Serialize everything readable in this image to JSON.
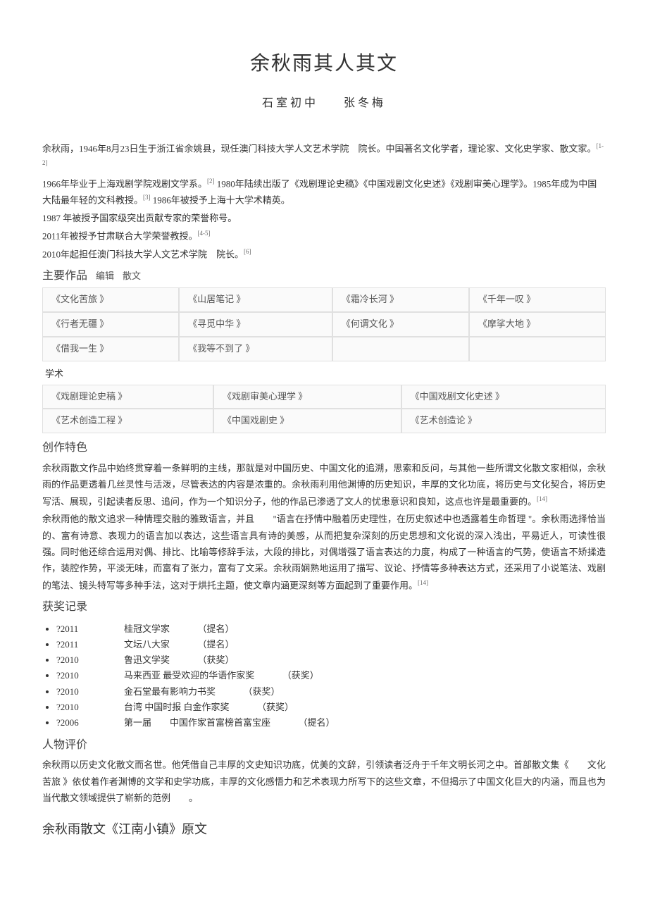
{
  "title": "余秋雨其人其文",
  "subtitle_school": "石室初中",
  "subtitle_author": "张冬梅",
  "intro": {
    "line1_parts": [
      "余秋雨，",
      "1946",
      "年",
      "8",
      "月",
      "23",
      "日生于",
      "浙江",
      "省",
      "余姚县",
      "，现任",
      "澳门科技大学人文艺术学院",
      "　院长。中国著名文化学者，理论家、文化史学家、散文家。"
    ],
    "sup1": "[1-2]",
    "line2_parts": [
      "1966",
      "年毕业于",
      "上海戏剧学院",
      "戏剧文学系。"
    ],
    "sup2": "[2]",
    "line2b_parts": [
      "1980",
      "年陆续出版了《",
      "戏剧理论史稿",
      "》《",
      "中国戏剧文化史述",
      "》《",
      "戏剧审美心理学",
      "》。",
      "1985",
      "年成为中国大陆最年轻的文科教授。"
    ],
    "sup3": "[3]",
    "line2c_parts": [
      "1986",
      "年被授予上海十大学术精英。"
    ],
    "line3": "1987 年被授予国家级突出贡献专家的荣誉称号。",
    "line4_parts": [
      "2011",
      "年被授予",
      "甘肃联合大学",
      "荣誉教授。"
    ],
    "sup4": "[4-5]",
    "line5_parts": [
      "2010",
      "年起担任",
      "澳门科技大学人文艺术学院",
      "　院长。"
    ],
    "sup5": "[6]"
  },
  "works_header": "主要作品",
  "works_edit": "编辑",
  "works_sanwen": "散文",
  "sanwen_table": [
    [
      "《文化苦旅 》",
      "《山居笔记 》",
      "《霜冷长河 》",
      "《千年一叹 》"
    ],
    [
      "《行者无疆 》",
      "《寻觅中华 》",
      "《何谓文化 》",
      "《摩挲大地 》"
    ],
    [
      "《借我一生 》",
      "《我等不到了 》",
      "",
      ""
    ]
  ],
  "works_xueshu": "学术",
  "xueshu_table": [
    [
      "《戏剧理论史稿 》",
      "《戏剧审美心理学 》",
      "《中国戏剧文化史述 》"
    ],
    [
      "《艺术创造工程 》",
      "《中国戏剧史 》",
      "《艺术创造论 》"
    ]
  ],
  "chuangzuo_header": "创作特色",
  "chuangzuo_para1": "余秋雨散文作品中始终贯穿着一条鲜明的主线，那就是对中国历史、中国文化的追溯，思索和反问，与其他一些所谓文化散文家相似，余秋雨的作品更透着几丝灵性与活泼，尽管表达的内容是浓重的。余秋雨利用他渊博的历史知识，丰厚的文化功底，将历史与文化契合，将历史写活、展现，引起读者反思、追问，作为一个知识分子，他的作品已渗透了文人的忧患意识和良知，这点也许是最重要的。",
  "chuangzuo_sup1": "[14]",
  "chuangzuo_para2": "余秋雨他的散文追求一种情理交融的雅致语言，并且　　\"语言在抒情中融着历史理性，在历史叙述中也透露着生命哲理 \"。余秋雨选择恰当的、富有诗意、表现力的语言加以表达，这些语言具有诗的美感，从而把复杂深刻的历史思想和文化说的深入浅出，平易近人，可读性很强。同时他还综合运用对偶、排比、比喻等修辞手法，大段的排比，对偶增强了语言表达的力度，构成了一种语言的气势，使语言不矫揉造作，装腔作势，平淡无味，而富有了张力，富有了文采。余秋雨娴熟地运用了描写、议论、抒情等多种表达方式，还采用了小说笔法、戏剧的笔法、镜头特写等多种手法，这对于烘托主题，使文章内涵更深刻等方面起到了重要作用。",
  "chuangzuo_sup2": "[14]",
  "award_header": "获奖记录",
  "awards": [
    {
      "year": "?2011",
      "name": "桂冠文学家",
      "status": "（提名）"
    },
    {
      "year": "?2011",
      "name": "文坛八大家",
      "status": "（提名）"
    },
    {
      "year": "?2010",
      "name": "鲁迅文学奖",
      "status": "（获奖）"
    },
    {
      "year": "?2010",
      "name": "马来西亚 最受欢迎的华语作家奖",
      "status": "（获奖）"
    },
    {
      "year": "?2010",
      "name": "金石堂最有影响力书奖",
      "status": "（获奖）"
    },
    {
      "year": "?2010",
      "name": "台湾 中国时报 白金作家奖",
      "status": "（获奖）"
    },
    {
      "year": "?2006",
      "name": "第一届　　中国作家首富榜首富宝座",
      "status": "（提名）"
    }
  ],
  "pingjia_header": "人物评价",
  "pingjia_para": "余秋雨以历史文化散文而名世。他凭借自己丰厚的文史知识功底，优美的文辞，引领读者泛舟于千年文明长河之中。首部散文集《　　文化苦旅 》依仗着作者渊博的文学和史学功底，丰厚的文化感悟力和艺术表现力所写下的这些文章，不但揭示了中国文化巨大的内涵，而且也为当代散文领域提供了崭新的范例　　。",
  "article_title": "余秋雨散文《江南小镇》原文",
  "colors": {
    "text": "#333333",
    "bg": "#ffffff",
    "table_border": "#e0e0e0",
    "table_bg": "#fafafa"
  }
}
